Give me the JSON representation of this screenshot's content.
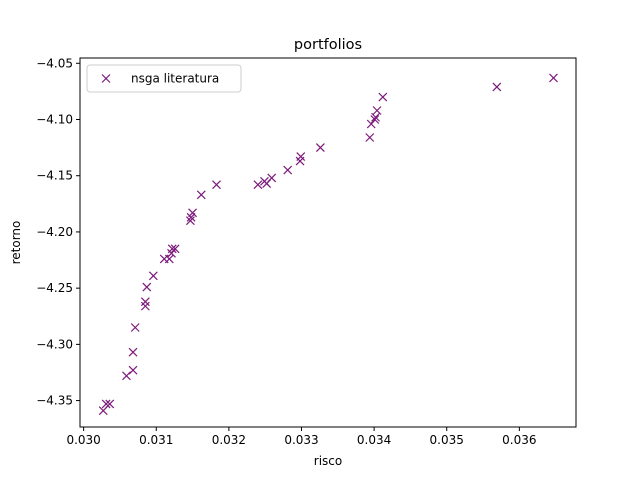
{
  "chart_data": {
    "type": "scatter",
    "title": "portfolios",
    "xlabel": "risco",
    "ylabel": "retorno",
    "xlim": [
      0.02995,
      0.03678
    ],
    "ylim": [
      -4.3735,
      -4.0453
    ],
    "xticks": [
      0.03,
      0.031,
      0.032,
      0.033,
      0.034,
      0.035,
      0.036
    ],
    "xtick_labels": [
      "0.030",
      "0.031",
      "0.032",
      "0.033",
      "0.034",
      "0.035",
      "0.036"
    ],
    "yticks": [
      -4.35,
      -4.3,
      -4.25,
      -4.2,
      -4.15,
      -4.1,
      -4.05
    ],
    "ytick_labels": [
      "−4.35",
      "−4.30",
      "−4.25",
      "−4.20",
      "−4.15",
      "−4.10",
      "−4.05"
    ],
    "grid": false,
    "legend_position": "top-left",
    "marker": "x",
    "color": "#7b1a7b",
    "series": [
      {
        "name": "nsga literatura",
        "points": [
          [
            0.03027,
            -4.359
          ],
          [
            0.03031,
            -4.353
          ],
          [
            0.03036,
            -4.353
          ],
          [
            0.03059,
            -4.328
          ],
          [
            0.03068,
            -4.323
          ],
          [
            0.03068,
            -4.307
          ],
          [
            0.03071,
            -4.285
          ],
          [
            0.03085,
            -4.266
          ],
          [
            0.03085,
            -4.262
          ],
          [
            0.03087,
            -4.249
          ],
          [
            0.03096,
            -4.239
          ],
          [
            0.03111,
            -4.224
          ],
          [
            0.03118,
            -4.224
          ],
          [
            0.03121,
            -4.219
          ],
          [
            0.03122,
            -4.215
          ],
          [
            0.03126,
            -4.215
          ],
          [
            0.03147,
            -4.19
          ],
          [
            0.03148,
            -4.187
          ],
          [
            0.0315,
            -4.183
          ],
          [
            0.03162,
            -4.167
          ],
          [
            0.03183,
            -4.158
          ],
          [
            0.0324,
            -4.158
          ],
          [
            0.03249,
            -4.155
          ],
          [
            0.03252,
            -4.157
          ],
          [
            0.03259,
            -4.152
          ],
          [
            0.03281,
            -4.145
          ],
          [
            0.03298,
            -4.137
          ],
          [
            0.03299,
            -4.133
          ],
          [
            0.03326,
            -4.125
          ],
          [
            0.03394,
            -4.116
          ],
          [
            0.03396,
            -4.104
          ],
          [
            0.03401,
            -4.1
          ],
          [
            0.03402,
            -4.098
          ],
          [
            0.03404,
            -4.092
          ],
          [
            0.03412,
            -4.08
          ],
          [
            0.03569,
            -4.071
          ],
          [
            0.03647,
            -4.063
          ]
        ]
      }
    ]
  }
}
